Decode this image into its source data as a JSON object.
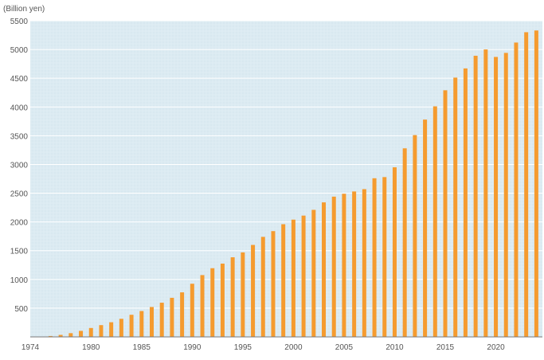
{
  "chart_data": {
    "type": "bar",
    "title": "",
    "xlabel": "",
    "ylabel": "(Billion yen)",
    "x": [
      1975,
      1976,
      1977,
      1978,
      1979,
      1980,
      1981,
      1982,
      1983,
      1984,
      1985,
      1986,
      1987,
      1988,
      1989,
      1990,
      1991,
      1992,
      1993,
      1994,
      1995,
      1996,
      1997,
      1998,
      1999,
      2000,
      2001,
      2002,
      2003,
      2004,
      2005,
      2006,
      2007,
      2008,
      2009,
      2010,
      2011,
      2012,
      2013,
      2014,
      2015,
      2016,
      2017,
      2018,
      2019,
      2020,
      2021,
      2022,
      2023,
      2024
    ],
    "values": [
      5,
      15,
      35,
      65,
      105,
      155,
      205,
      255,
      315,
      385,
      450,
      520,
      595,
      680,
      775,
      925,
      1075,
      1195,
      1275,
      1385,
      1470,
      1600,
      1740,
      1840,
      1960,
      2040,
      2110,
      2210,
      2340,
      2440,
      2490,
      2530,
      2570,
      2760,
      2780,
      2950,
      3280,
      3510,
      3780,
      4010,
      4290,
      4510,
      4670,
      4890,
      5000,
      4870,
      4940,
      5120,
      5300,
      5330
    ],
    "xticks": [
      "1974",
      "1980",
      "1985",
      "1990",
      "1995",
      "2000",
      "2005",
      "2010",
      "2015",
      "2020"
    ],
    "yticks": [
      "500",
      "1000",
      "1500",
      "2000",
      "2500",
      "3000",
      "3500",
      "4000",
      "4500",
      "5000",
      "5500"
    ],
    "xlim": [
      1974,
      2024.6
    ],
    "ylim": [
      0,
      5500
    ],
    "grid": true,
    "legend": "none",
    "colors": {
      "bar": "#f59b2f",
      "plot_background": "#dcebf2",
      "grid": "#ffffff",
      "axis": "#7a7a7a",
      "text": "#555555"
    }
  }
}
